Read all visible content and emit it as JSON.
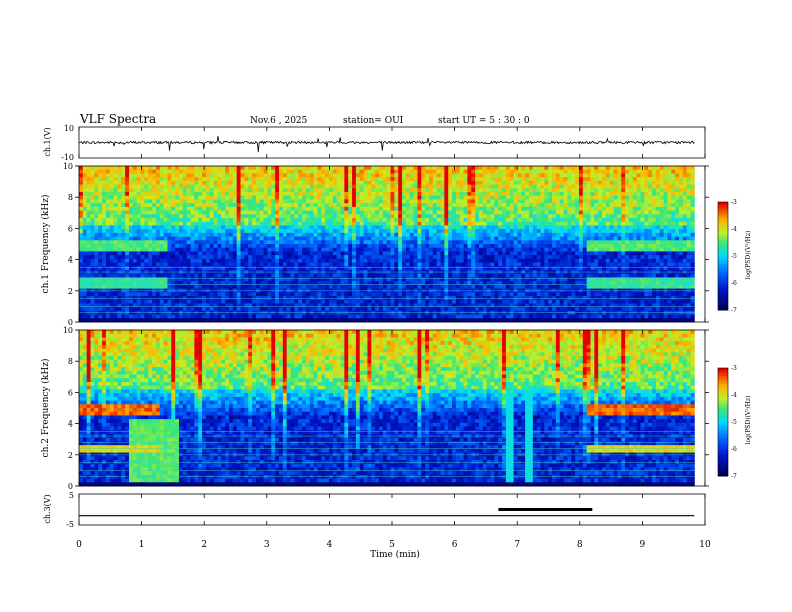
{
  "header": {
    "title": "VLF Spectra",
    "date": "Nov.6 , 2025",
    "station": "station= OUI",
    "start": "start UT = 5 : 30 : 0"
  },
  "chart_data": [
    {
      "type": "line",
      "panel": "ch1-waveform",
      "ylabel": "ch.1(V)",
      "yticks": [
        "10",
        "-10"
      ],
      "ylim": [
        -10,
        10
      ]
    },
    {
      "type": "heatmap",
      "panel": "ch1-spectrogram",
      "ylabel": "ch.1 Frequency (kHz)",
      "ylim": [
        0,
        10
      ],
      "yticks": [
        "0",
        "2",
        "4",
        "6",
        "8",
        "10"
      ],
      "colorbar": {
        "label": "log(PSD)(V²/Hz)",
        "ticks": [
          "-3",
          "-4",
          "-5",
          "-6",
          "-7"
        ],
        "range": [
          -7,
          -3
        ]
      }
    },
    {
      "type": "heatmap",
      "panel": "ch2-spectrogram",
      "ylabel": "ch.2 Frequency (kHz)",
      "ylim": [
        0,
        10
      ],
      "yticks": [
        "0",
        "2",
        "4",
        "6",
        "8",
        "10"
      ],
      "colorbar": {
        "label": "log(PSD)(V²/Hz)",
        "ticks": [
          "-3",
          "-4",
          "-5",
          "-6",
          "-7"
        ],
        "range": [
          -7,
          -3
        ]
      }
    },
    {
      "type": "line",
      "panel": "ch3-level",
      "ylabel": "ch.3(V)",
      "yticks": [
        "5",
        "-5"
      ],
      "ylim": [
        -5,
        5
      ],
      "baseline_value": -2,
      "highlight_interval_min": [
        6.7,
        8.2
      ]
    }
  ],
  "xaxis": {
    "label": "Time (min)",
    "ticks": [
      "0",
      "1",
      "2",
      "3",
      "4",
      "5",
      "6",
      "7",
      "8",
      "9",
      "10"
    ],
    "xlim": [
      0,
      10
    ]
  },
  "colors": {
    "low": "#00005a",
    "mid": "#00c8ff",
    "high": "#ff0000"
  }
}
